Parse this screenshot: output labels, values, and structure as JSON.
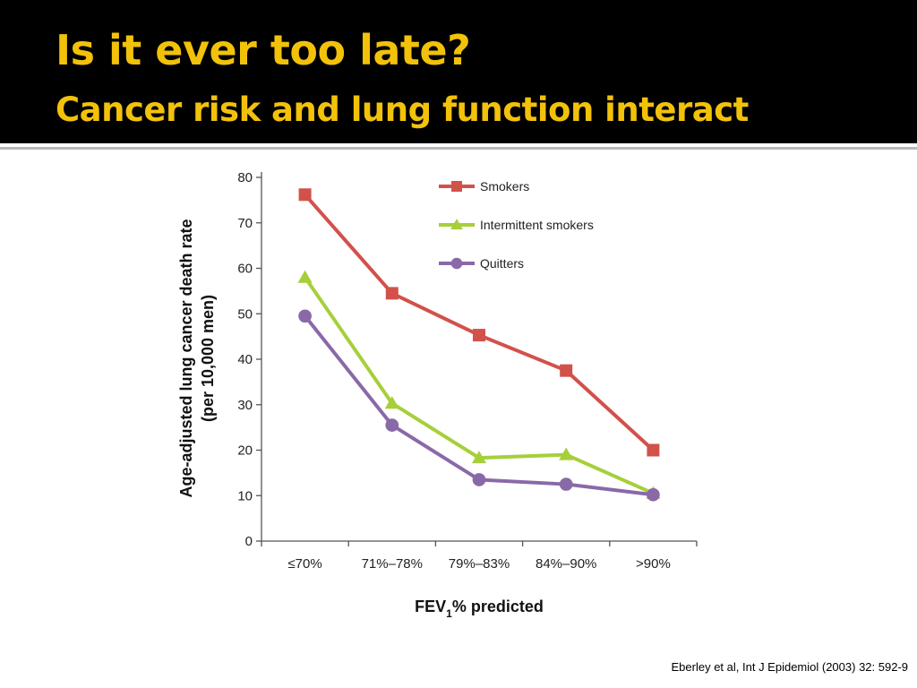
{
  "slide": {
    "title": "Is it ever too late?",
    "subtitle": "Cancer risk and lung function interact",
    "citation": "Eberley et al, Int J Epidemiol (2003) 32: 592-9",
    "title_color": "#f2c20a",
    "header_color": "#000000"
  },
  "chart_data": {
    "type": "line",
    "categories": [
      "≤70%",
      "71%–78%",
      "79%–83%",
      "84%–90%",
      ">90%"
    ],
    "series": [
      {
        "name": "Smokers",
        "marker": "square",
        "color": "#d2514b",
        "values": [
          76.2,
          54.5,
          45.3,
          37.5,
          20.0
        ]
      },
      {
        "name": "Intermittent smokers",
        "marker": "triangle",
        "color": "#a6cf3a",
        "values": [
          58.0,
          30.3,
          18.3,
          19.0,
          10.5
        ]
      },
      {
        "name": "Quitters",
        "marker": "circle",
        "color": "#8a69a8",
        "values": [
          49.5,
          25.5,
          13.5,
          12.5,
          10.2
        ]
      }
    ],
    "ylabel_line1": "Age-adjusted lung cancer death rate",
    "ylabel_line2": "(per 10,000 men)",
    "xlabel_main": "FEV",
    "xlabel_sub": "1",
    "xlabel_rest": "% predicted",
    "ylim": [
      0,
      80
    ],
    "yticks": [
      0,
      10,
      20,
      30,
      40,
      50,
      60,
      70,
      80
    ],
    "grid": false,
    "legend_position": "top-right"
  }
}
